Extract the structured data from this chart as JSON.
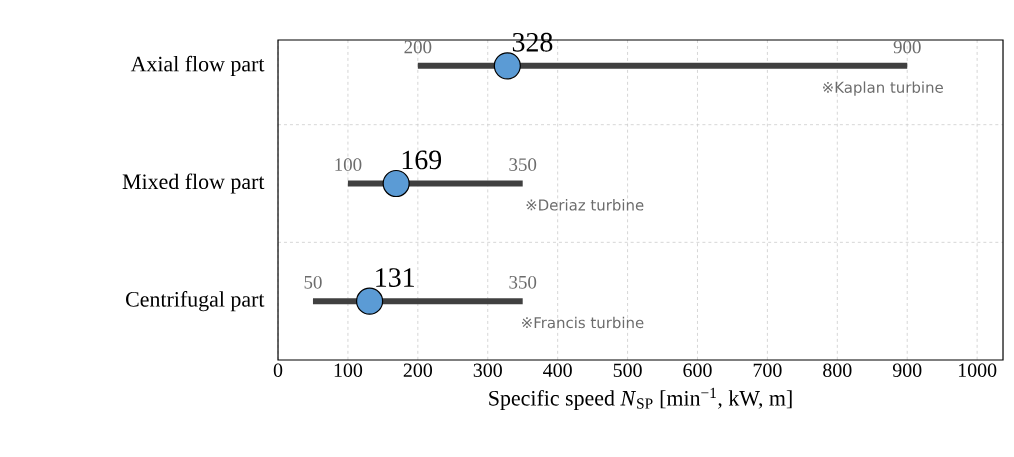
{
  "chart_data": {
    "type": "bar",
    "orientation": "horizontal",
    "xlabel": "Specific speed *N*$_{SP}$ [min$^{−1}$, kW, m]",
    "categories": [
      "Axial flow part",
      "Mixed flow part",
      "Centrifugal part"
    ],
    "series": [
      {
        "color": "#404040",
        "base": [
          200,
          100,
          50
        ],
        "values": [
          700,
          250,
          300
        ]
      },
      {
        "type": "scatter",
        "color": "#5b9bd5",
        "values": [
          328,
          169,
          131
        ],
        "value_labels": [
          "328",
          "169",
          "131"
        ]
      }
    ],
    "xlim": [
      0,
      1037
    ],
    "xticks": [
      0,
      100,
      200,
      300,
      400,
      500,
      600,
      700,
      800,
      900,
      1000
    ],
    "grid": true,
    "marker": "circle",
    "annotations": [
      {
        "text": "200",
        "x": 200,
        "y": "Axial flow part"
      },
      {
        "text": "900",
        "x": 900,
        "y": "Axial flow part"
      },
      "※Kaplan turbine",
      {
        "text": "100",
        "x": 100,
        "y": "Mixed flow part"
      },
      {
        "text": "350",
        "x": 350,
        "y": "Mixed flow part"
      },
      "※Deriaz turbine",
      {
        "text": "50",
        "x": 50,
        "y": "Centrifugal part"
      },
      {
        "text": "350",
        "x": 350,
        "y": "Centrifugal part"
      },
      "※Francis turbine"
    ]
  }
}
